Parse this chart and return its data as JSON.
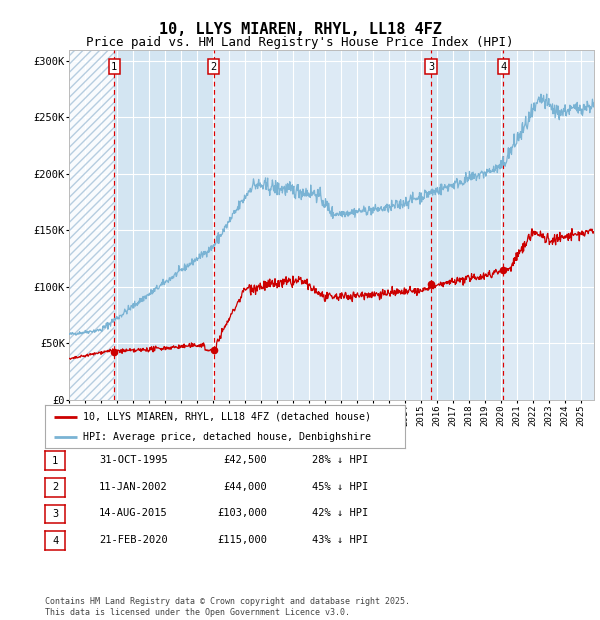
{
  "title": "10, LLYS MIAREN, RHYL, LL18 4FZ",
  "subtitle": "Price paid vs. HM Land Registry's House Price Index (HPI)",
  "title_fontsize": 11,
  "subtitle_fontsize": 9,
  "hpi_color": "#7ab3d4",
  "price_color": "#cc0000",
  "bg_color": "#ffffff",
  "plot_bg_color": "#ddeaf5",
  "grid_color": "#ffffff",
  "ylabel_ticks": [
    "£0",
    "£50K",
    "£100K",
    "£150K",
    "£200K",
    "£250K",
    "£300K"
  ],
  "ytick_values": [
    0,
    50000,
    100000,
    150000,
    200000,
    250000,
    300000
  ],
  "ylim": [
    0,
    310000
  ],
  "xlim_start": 1993.0,
  "xlim_end": 2025.8,
  "transactions": [
    {
      "label": "1",
      "date_str": "31-OCT-1995",
      "year": 1995.83,
      "price": 42500,
      "pct": "28% ↓ HPI"
    },
    {
      "label": "2",
      "date_str": "11-JAN-2002",
      "year": 2002.03,
      "price": 44000,
      "pct": "45% ↓ HPI"
    },
    {
      "label": "3",
      "date_str": "14-AUG-2015",
      "year": 2015.62,
      "price": 103000,
      "pct": "42% ↓ HPI"
    },
    {
      "label": "4",
      "date_str": "21-FEB-2020",
      "year": 2020.13,
      "price": 115000,
      "pct": "43% ↓ HPI"
    }
  ],
  "legend_entries": [
    {
      "label": "10, LLYS MIAREN, RHYL, LL18 4FZ (detached house)",
      "color": "#cc0000"
    },
    {
      "label": "HPI: Average price, detached house, Denbighshire",
      "color": "#7ab3d4"
    }
  ],
  "footer_text": "Contains HM Land Registry data © Crown copyright and database right 2025.\nThis data is licensed under the Open Government Licence v3.0.",
  "table_rows": [
    [
      "1",
      "31-OCT-1995",
      "£42,500",
      "28% ↓ HPI"
    ],
    [
      "2",
      "11-JAN-2002",
      "£44,000",
      "45% ↓ HPI"
    ],
    [
      "3",
      "14-AUG-2015",
      "£103,000",
      "42% ↓ HPI"
    ],
    [
      "4",
      "21-FEB-2020",
      "£115,000",
      "43% ↓ HPI"
    ]
  ]
}
